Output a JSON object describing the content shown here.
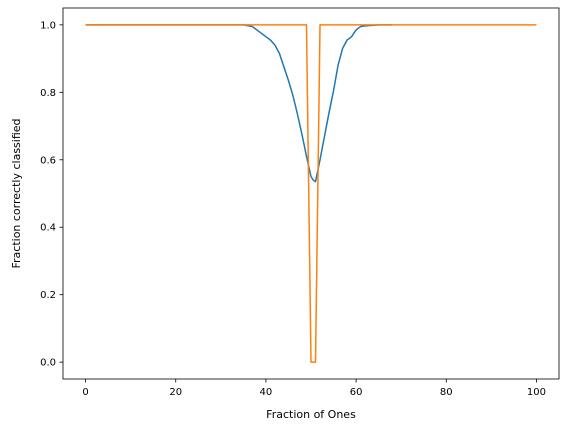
{
  "chart_data": {
    "type": "line",
    "title": "",
    "xlabel": "Fraction of Ones",
    "ylabel": "Fraction correctly classified",
    "xlim": [
      -5,
      105
    ],
    "ylim": [
      -0.05,
      1.05
    ],
    "xticks": [
      0,
      20,
      40,
      60,
      80,
      100
    ],
    "xtick_labels": [
      "0",
      "20",
      "40",
      "60",
      "80",
      "100"
    ],
    "yticks": [
      0.0,
      0.2,
      0.4,
      0.6,
      0.8,
      1.0
    ],
    "ytick_labels": [
      "0.0",
      "0.2",
      "0.4",
      "0.6",
      "0.8",
      "1.0"
    ],
    "grid": false,
    "legend": false,
    "series": [
      {
        "color": "#1f77b4",
        "x": [
          0,
          10,
          20,
          30,
          35,
          37,
          38,
          39,
          40,
          41,
          42,
          43,
          44,
          45,
          46,
          47,
          48,
          49,
          50,
          50.5,
          51,
          52,
          53,
          54,
          55,
          56,
          57,
          58,
          59,
          60,
          61,
          62,
          63,
          64,
          65,
          66,
          67,
          68
        ],
        "y": [
          1.0,
          1.0,
          1.0,
          1.0,
          1.0,
          0.995,
          0.985,
          0.975,
          0.965,
          0.955,
          0.94,
          0.915,
          0.875,
          0.835,
          0.79,
          0.735,
          0.675,
          0.61,
          0.55,
          0.54,
          0.535,
          0.6,
          0.67,
          0.74,
          0.805,
          0.88,
          0.93,
          0.955,
          0.965,
          0.985,
          0.995,
          0.997,
          0.998,
          0.999,
          1.0,
          1.0,
          1.0,
          1.0
        ]
      },
      {
        "color": "#ff7f0e",
        "x": [
          0,
          10,
          20,
          30,
          40,
          45,
          48,
          49,
          50,
          51,
          52,
          53,
          60,
          70,
          80,
          90,
          100
        ],
        "y": [
          1.0,
          1.0,
          1.0,
          1.0,
          1.0,
          1.0,
          1.0,
          1.0,
          0.0,
          0.0,
          1.0,
          1.0,
          1.0,
          1.0,
          1.0,
          1.0,
          1.0
        ]
      }
    ]
  }
}
